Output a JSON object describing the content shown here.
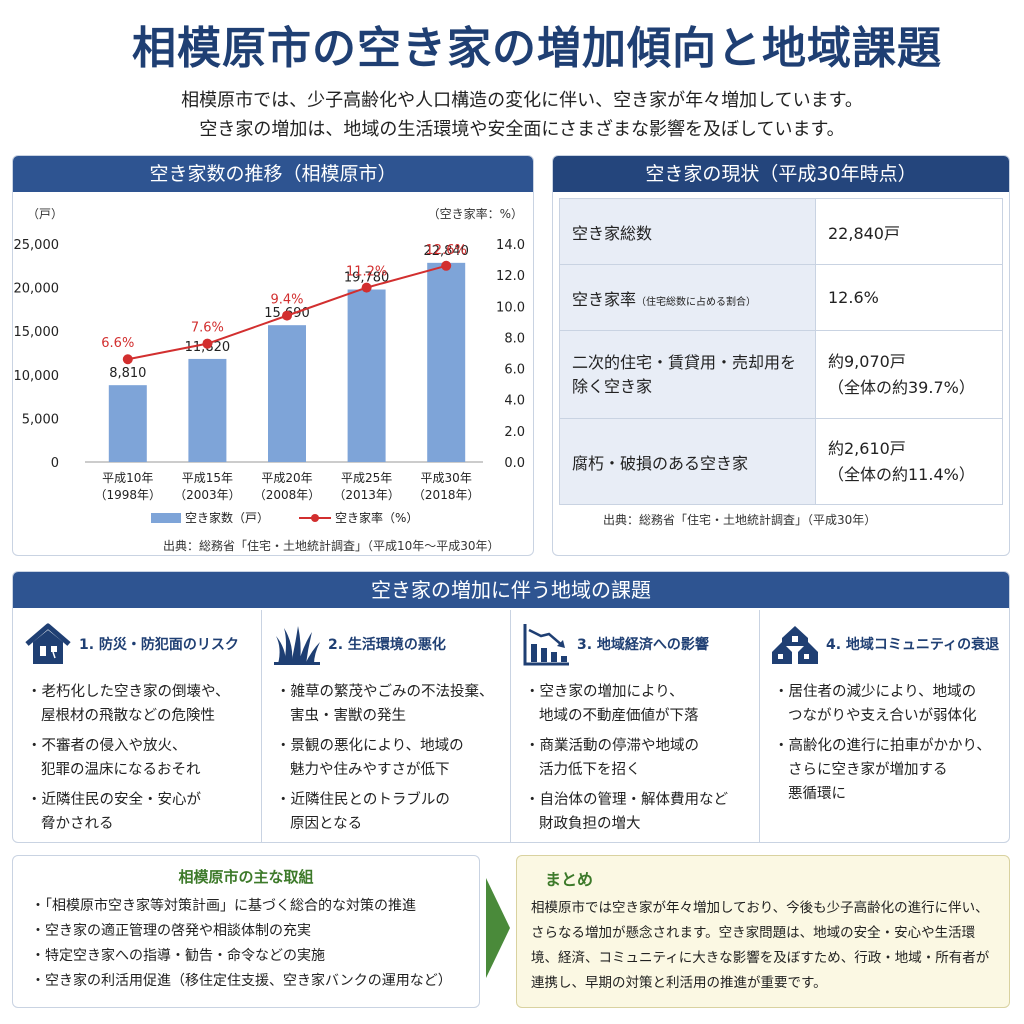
{
  "title": "相模原市の空き家の増加傾向と地域課題",
  "intro": {
    "line1": "相模原市では、少子高齢化や人口構造の変化に伴い、空き家が年々増加しています。",
    "line2": "空き家の増加は、地域の生活環境や安全面にさまざまな影響を及ぼしています。"
  },
  "chart_panel": {
    "header": "空き家数の推移（相模原市）",
    "source": "出典：総務省「住宅・土地統計調査」（平成10年～平成30年）"
  },
  "chart_data": {
    "type": "bar",
    "categories": [
      "平成10年\n（1998年）",
      "平成15年\n（2003年）",
      "平成20年\n（2008年）",
      "平成25年\n（2013年）",
      "平成30年\n（2018年）"
    ],
    "series": [
      {
        "name": "空き家数（戸）",
        "type": "bar",
        "axis": "left",
        "values": [
          8810,
          11820,
          15690,
          19780,
          22840
        ],
        "labels": [
          "8,810",
          "11,820",
          "15,690",
          "19,780",
          "22,840"
        ],
        "color": "#7ea4d8"
      },
      {
        "name": "空き家率（%）",
        "type": "line",
        "axis": "right",
        "values": [
          6.6,
          7.6,
          9.4,
          11.2,
          12.6
        ],
        "labels": [
          "6.6%",
          "7.6%",
          "9.4%",
          "11.2%",
          "12.6%"
        ],
        "color": "#d22f2f"
      }
    ],
    "y_left": {
      "unit": "（戸）",
      "ticks": [
        "0",
        "5,000",
        "10,000",
        "15,000",
        "20,000",
        "25,000"
      ],
      "range": [
        0,
        25000
      ]
    },
    "y_right": {
      "unit": "（空き家率：%）",
      "ticks": [
        "0.0",
        "2.0",
        "4.0",
        "6.0",
        "8.0",
        "10.0",
        "12.0",
        "14.0"
      ],
      "range": [
        0,
        14
      ]
    },
    "legend_position": "bottom"
  },
  "status": {
    "header": "空き家の現状（平成30年時点）",
    "rows": [
      {
        "label": "空き家総数",
        "label_small": "",
        "value1": "22,840戸",
        "value2": ""
      },
      {
        "label": "空き家率",
        "label_small": "（住宅総数に占める割合）",
        "value1": "12.6%",
        "value2": ""
      },
      {
        "label": "二次的住宅・賃貸用・売却用を除く空き家",
        "label_small": "",
        "value1": "約9,070戸",
        "value2": "（全体の約39.7%）"
      },
      {
        "label": "腐朽・破損のある空き家",
        "label_small": "",
        "value1": "約2,610戸",
        "value2": "（全体の約11.4%）"
      }
    ],
    "source": "出典：総務省「住宅・土地統計調査」（平成30年）"
  },
  "issues": {
    "header": "空き家の増加に伴う地域の課題",
    "items": [
      {
        "title": "1. 防災・防犯面のリスク",
        "icon": "house-risk-icon",
        "points": [
          "・老朽化した空き家の倒壊や、\n屋根材の飛散などの危険性",
          "・不審者の侵入や放火、\n犯罪の温床になるおそれ",
          "・近隣住民の安全・安心が\n脅かされる"
        ]
      },
      {
        "title": "2. 生活環境の悪化",
        "icon": "weeds-icon",
        "points": [
          "・雑草の繁茂やごみの不法投棄、\n害虫・害獣の発生",
          "・景観の悪化により、地域の\n魅力や住みやすさが低下",
          "・近隣住民とのトラブルの\n原因となる"
        ]
      },
      {
        "title": "3. 地域経済への影響",
        "icon": "decline-chart-icon",
        "points": [
          "・空き家の増加により、\n地域の不動産価値が下落",
          "・商業活動の停滞や地域の\n活力低下を招く",
          "・自治体の管理・解体費用など\n財政負担の増大"
        ]
      },
      {
        "title": "4. 地域コミュニティの衰退",
        "icon": "community-houses-icon",
        "points": [
          "・居住者の減少により、地域の\nつながりや支え合いが弱体化",
          "・高齢化の進行に拍車がかかり、\nさらに空き家が増加する\n悪循環に"
        ]
      }
    ]
  },
  "measures": {
    "title": "相模原市の主な取組",
    "items": [
      "・「相模原市空き家等対策計画」に基づく総合的な対策の推進",
      "・空き家の適正管理の啓発や相談体制の充実",
      "・特定空き家への指導・勧告・命令などの実施",
      "・空き家の利活用促進（移住定住支援、空き家バンクの運用など）"
    ]
  },
  "summary": {
    "title": "まとめ",
    "text": "相模原市では空き家が年々増加しており、今後も少子高齢化の進行に伴い、さらなる増加が懸念されます。空き家問題は、地域の安全・安心や生活環境、経済、コミュニティに大きな影響を及ぼすため、行政・地域・所有者が連携し、早期の対策と利活用の推進が重要です。"
  },
  "colors": {
    "navy": "#1f3f73",
    "header_blue": "#2e5491",
    "bar_blue": "#7ea4d8",
    "line_red": "#d22f2f",
    "green": "#3d7a2a"
  }
}
